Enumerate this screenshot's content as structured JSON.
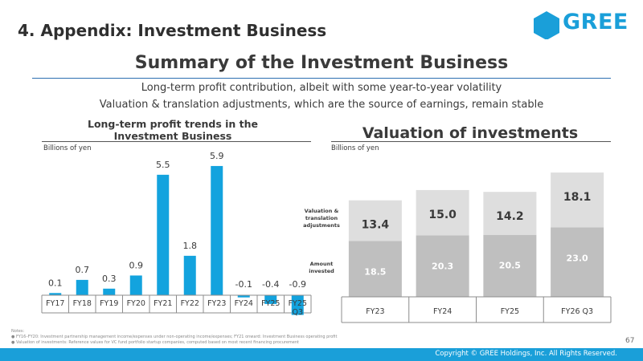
{
  "header": {
    "section_title": "4. Appendix: Investment Business",
    "logo_text": "GREE",
    "brand_color": "#1a9fd9"
  },
  "main": {
    "title": "Summary of the Investment Business",
    "subtitle_1": "Long-term profit contribution, albeit with some year-to-year volatility",
    "subtitle_2": "Valuation & translation adjustments, which are the source of earnings, remain stable"
  },
  "left_panel": {
    "title": "Long-term profit trends in the Investment Business",
    "units": "Billions of yen"
  },
  "right_panel": {
    "title": "Valuation of investments",
    "units": "Billions of yen"
  },
  "chart_data": [
    {
      "type": "bar",
      "title": "Long-term profit trends in the Investment Business",
      "ylabel": "Billions of yen",
      "categories": [
        "FY17",
        "FY18",
        "FY19",
        "FY20",
        "FY21",
        "FY22",
        "FY23",
        "FY24",
        "FY25",
        "FY25 Q3"
      ],
      "values": [
        0.1,
        0.7,
        0.3,
        0.9,
        5.5,
        1.8,
        5.9,
        -0.1,
        -0.4,
        -0.9
      ],
      "value_labels": [
        "0.1",
        "0.7",
        "0.3",
        "0.9",
        "5.5",
        "1.8",
        "5.9",
        "-0.1",
        "-0.4",
        "-0.9"
      ],
      "color": "#13a3de",
      "ylim": [
        -0.9,
        5.9
      ],
      "grid": false
    },
    {
      "type": "bar",
      "stacked": true,
      "title": "Valuation of investments",
      "ylabel": "Billions of yen",
      "categories": [
        "FY23",
        "FY24",
        "FY25",
        "FY26 Q3"
      ],
      "series": [
        {
          "name": "Amount invested",
          "values": [
            18.5,
            20.3,
            20.5,
            23.0
          ],
          "labels": [
            "18.5",
            "20.3",
            "20.5",
            "23.0"
          ],
          "color": "#bfbfbf",
          "label_color": "#ffffff"
        },
        {
          "name": "Valuation & translation adjustments",
          "values": [
            13.4,
            15.0,
            14.2,
            18.1
          ],
          "labels": [
            "13.4",
            "15.0",
            "14.2",
            "18.1"
          ],
          "color": "#dedede",
          "label_color": "#3a3a3a"
        }
      ],
      "ylim": [
        0,
        41.1
      ],
      "grid": false
    }
  ],
  "notes": {
    "heading": "Notes:",
    "lines": [
      "● FY16–FY20: Investment partnership management income/expenses under non-operating income/expenses; FY21 onward: Investment Business operating profit",
      "● Valuation of investments: Reference values for VC fund portfolio startup companies, computed based on most recent financing procurement"
    ]
  },
  "page_number": "67",
  "footer": {
    "copyright": "Copyright © GREE Holdings, Inc. All Rights Reserved."
  }
}
